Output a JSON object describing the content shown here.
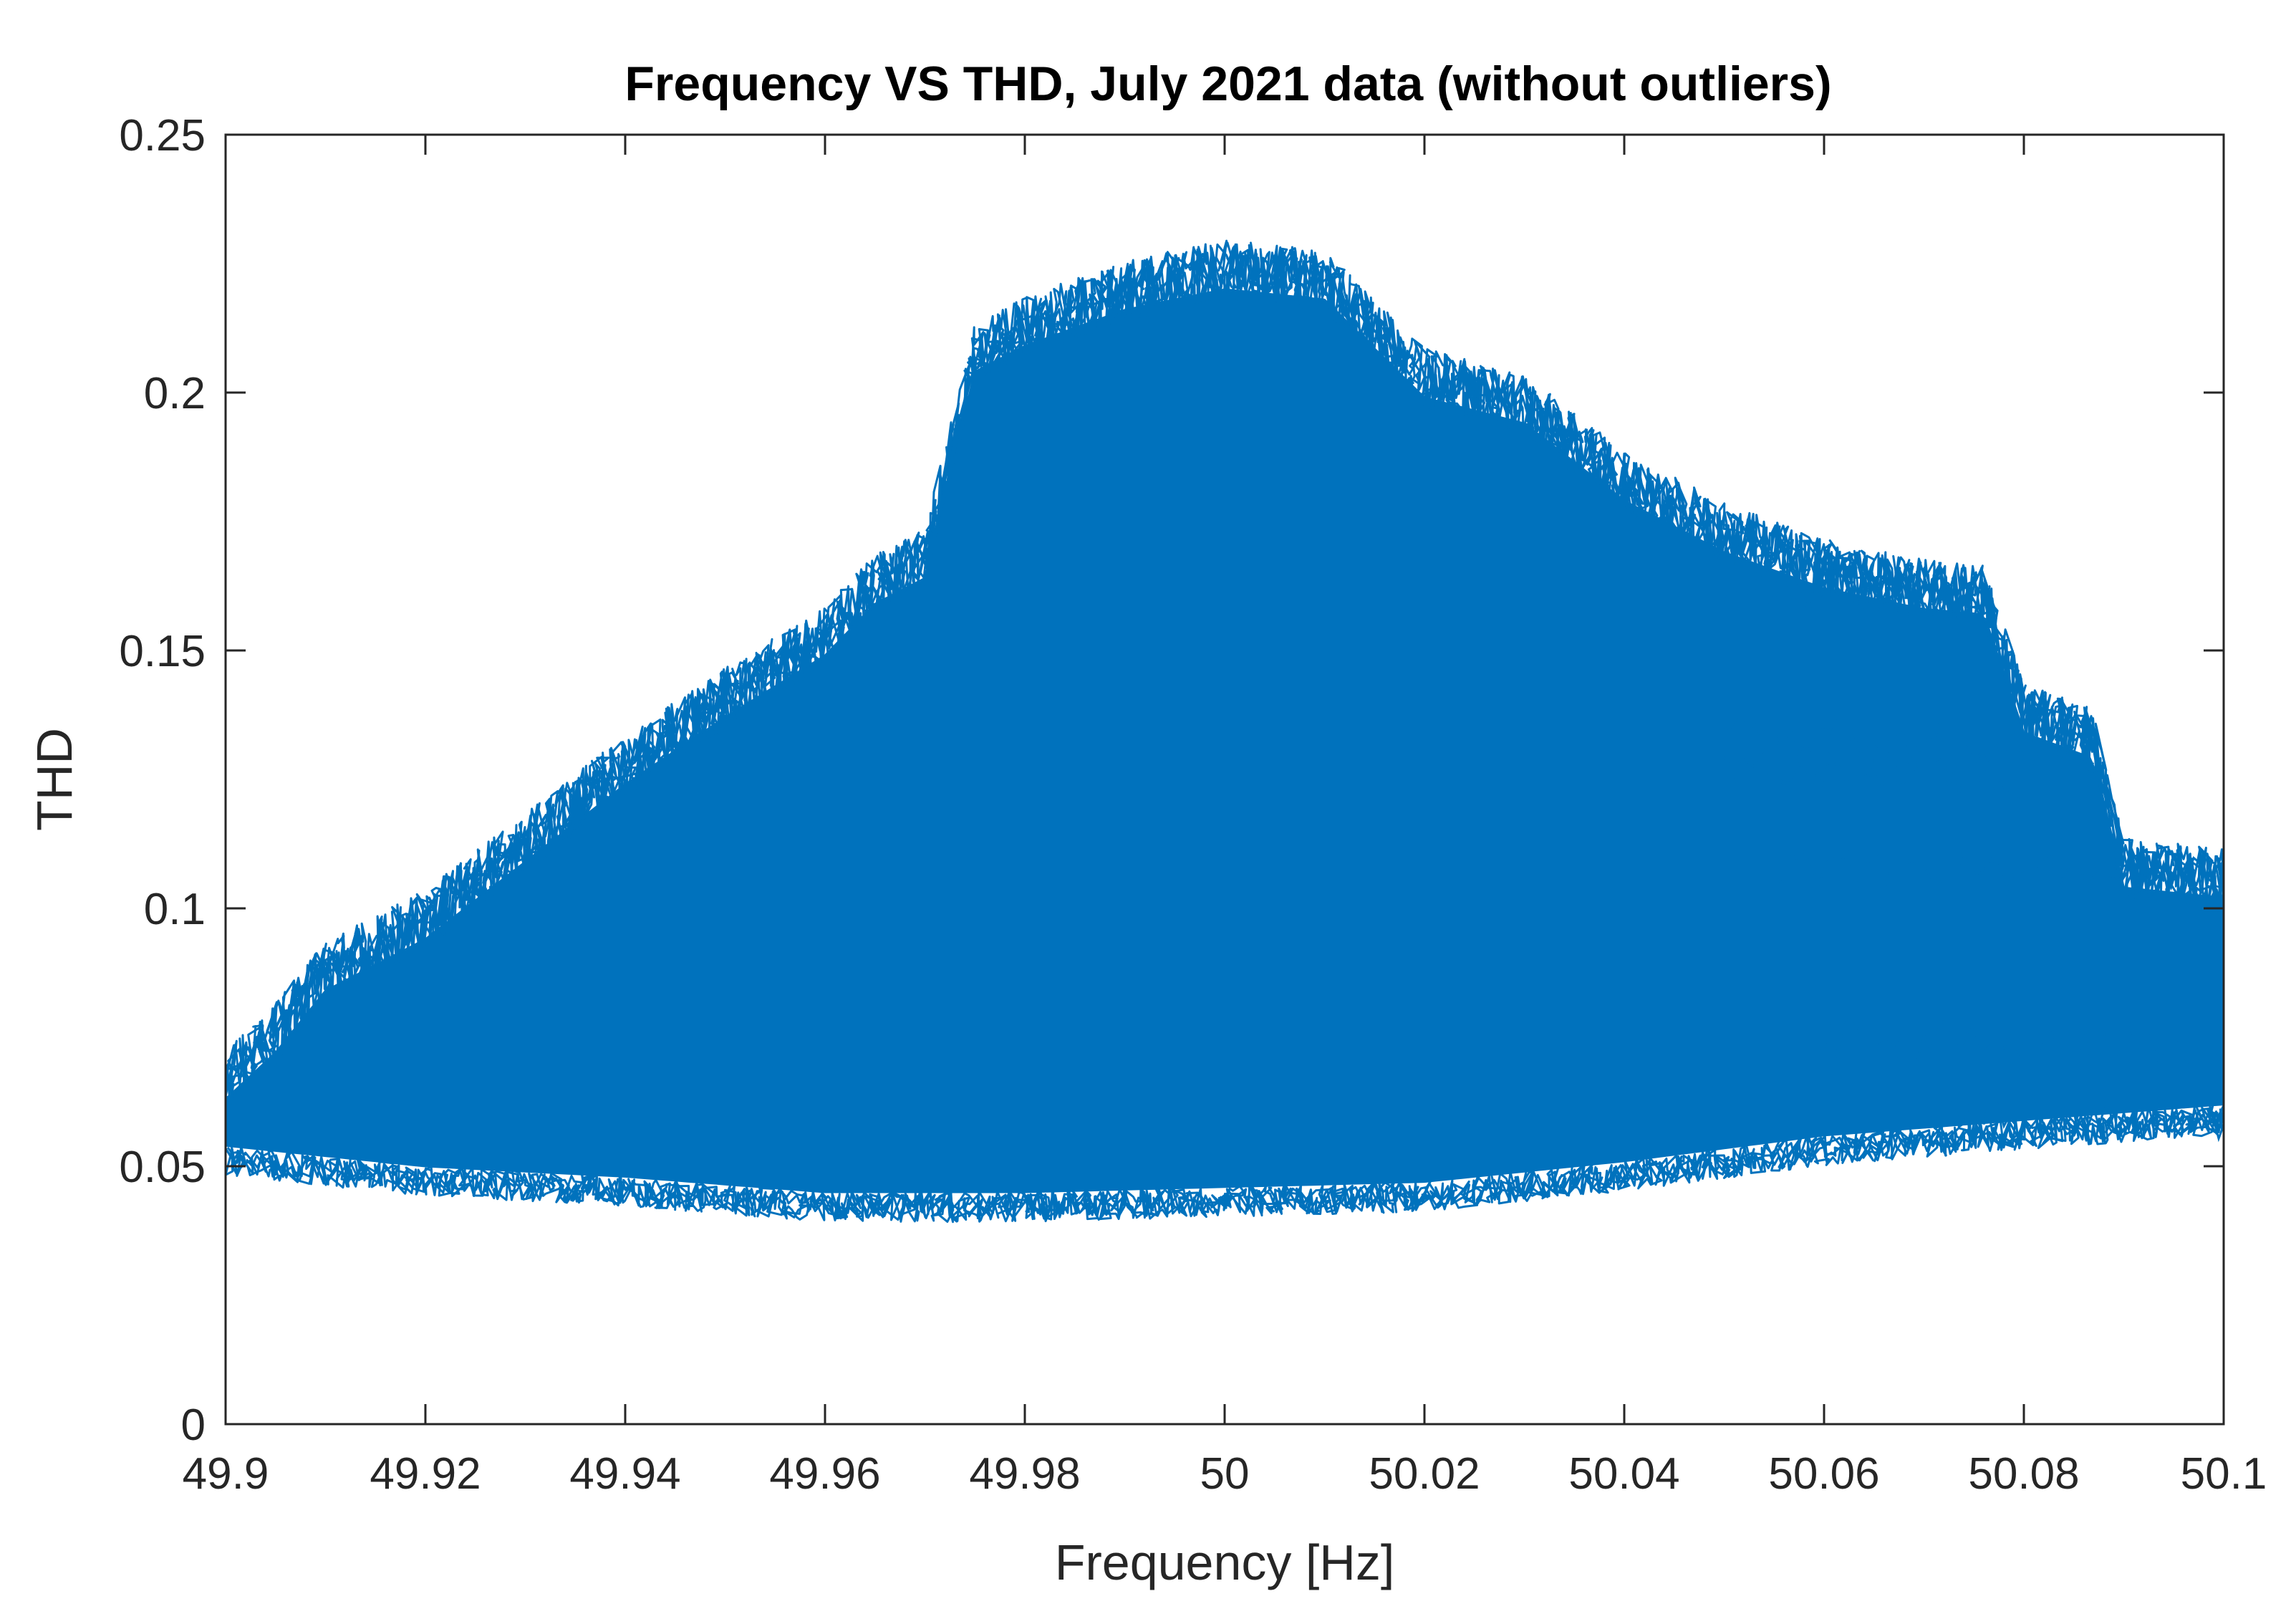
{
  "chart_data": {
    "type": "line",
    "title": "Frequency VS THD, July 2021 data (without outliers)",
    "xlabel": "Frequency [Hz]",
    "ylabel": "THD",
    "xlim": [
      49.9,
      50.1
    ],
    "ylim": [
      0,
      0.25
    ],
    "xticks": [
      49.9,
      49.92,
      49.94,
      49.96,
      49.98,
      50,
      50.02,
      50.04,
      50.06,
      50.08,
      50.1
    ],
    "xtick_labels": [
      "49.9",
      "49.92",
      "49.94",
      "49.96",
      "49.98",
      "50",
      "50.02",
      "50.04",
      "50.06",
      "50.08",
      "50.1"
    ],
    "yticks": [
      0,
      0.05,
      0.1,
      0.15,
      0.2,
      0.25
    ],
    "ytick_labels": [
      "0",
      "0.05",
      "0.1",
      "0.15",
      "0.2",
      "0.25"
    ],
    "grid": false,
    "legend": "none",
    "series_color": "#0072BD",
    "series": [
      {
        "note_free_envelope": true,
        "upper_envelope": {
          "x": [
            49.9,
            49.905,
            49.91,
            49.92,
            49.93,
            49.94,
            49.95,
            49.96,
            49.965,
            49.97,
            49.975,
            49.98,
            49.99,
            50.0,
            50.01,
            50.02,
            50.03,
            50.04,
            50.05,
            50.06,
            50.07,
            50.076,
            50.08,
            50.087,
            50.09,
            50.1
          ],
          "y": [
            0.069,
            0.078,
            0.09,
            0.1,
            0.115,
            0.13,
            0.143,
            0.155,
            0.165,
            0.17,
            0.21,
            0.215,
            0.222,
            0.226,
            0.224,
            0.205,
            0.2,
            0.185,
            0.175,
            0.168,
            0.164,
            0.163,
            0.14,
            0.135,
            0.11,
            0.108
          ]
        },
        "lower_envelope": {
          "x": [
            49.9,
            49.92,
            49.94,
            49.96,
            49.98,
            50.0,
            50.02,
            50.04,
            50.06,
            50.08,
            50.1
          ],
          "y": [
            0.05,
            0.046,
            0.044,
            0.041,
            0.041,
            0.042,
            0.043,
            0.047,
            0.052,
            0.055,
            0.058
          ]
        }
      }
    ]
  }
}
